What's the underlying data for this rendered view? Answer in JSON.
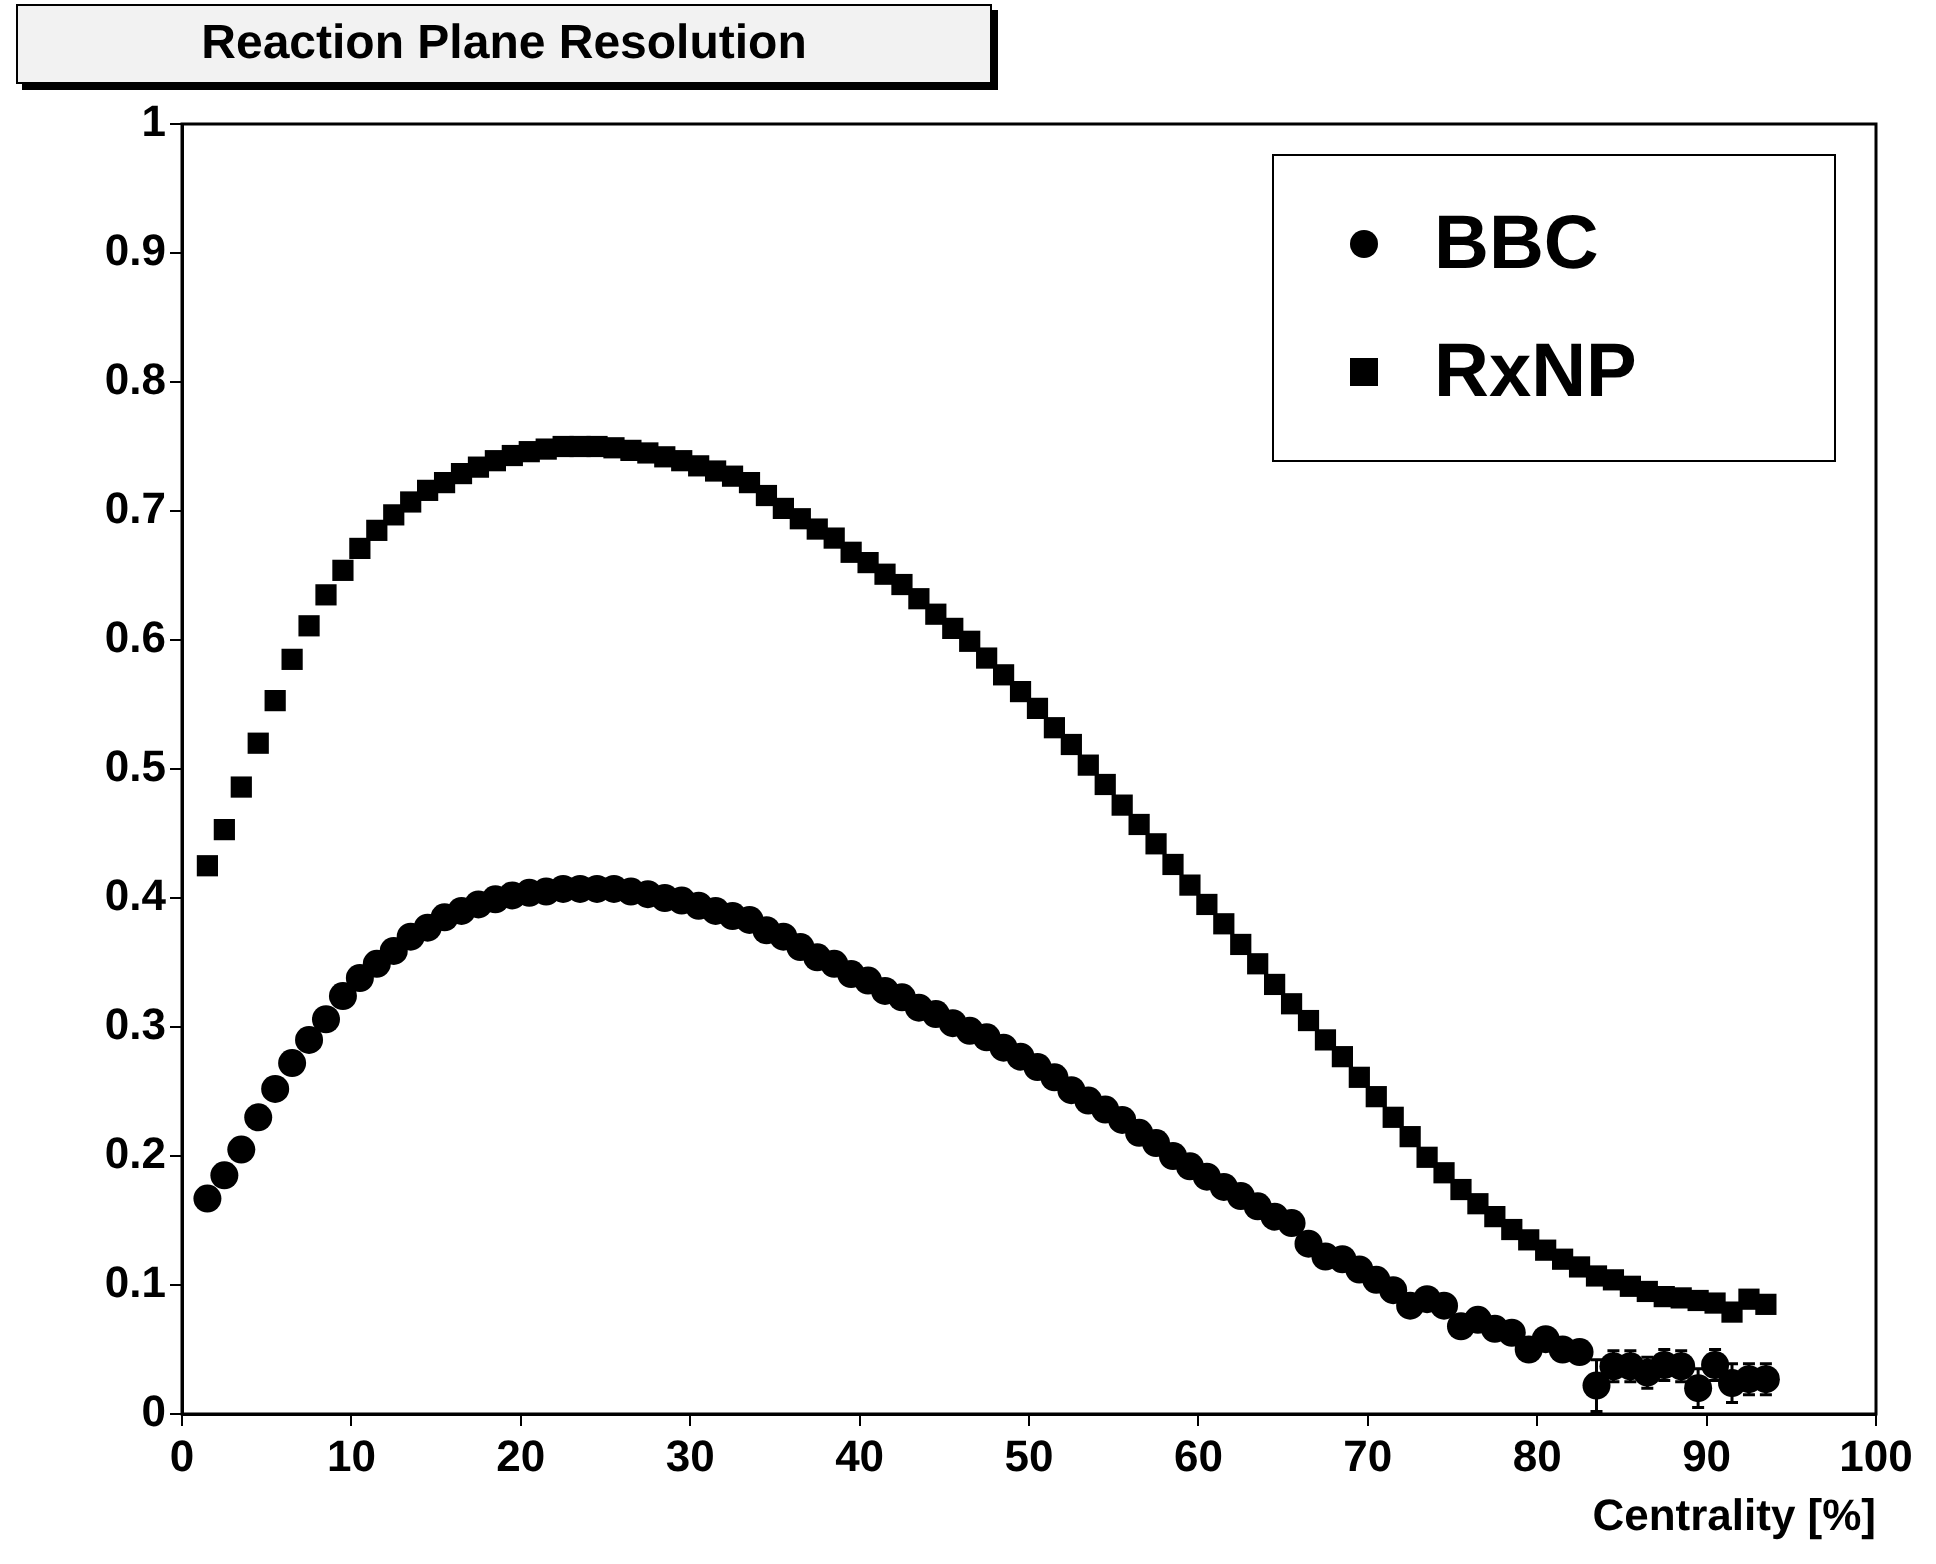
{
  "chart_data": {
    "type": "scatter",
    "title": "Reaction Plane Resolution",
    "xlabel": "Centrality [%]",
    "x": [
      1.5,
      2.5,
      3.5,
      4.5,
      5.5,
      6.5,
      7.5,
      8.5,
      9.5,
      10.5,
      11.5,
      12.5,
      13.5,
      14.5,
      15.5,
      16.5,
      17.5,
      18.5,
      19.5,
      20.5,
      21.5,
      22.5,
      23.5,
      24.5,
      25.5,
      26.5,
      27.5,
      28.5,
      29.5,
      30.5,
      31.5,
      32.5,
      33.5,
      34.5,
      35.5,
      36.5,
      37.5,
      38.5,
      39.5,
      40.5,
      41.5,
      42.5,
      43.5,
      44.5,
      45.5,
      46.5,
      47.5,
      48.5,
      49.5,
      50.5,
      51.5,
      52.5,
      53.5,
      54.5,
      55.5,
      56.5,
      57.5,
      58.5,
      59.5,
      60.5,
      61.5,
      62.5,
      63.5,
      64.5,
      65.5,
      66.5,
      67.5,
      68.5,
      69.5,
      70.5,
      71.5,
      72.5,
      73.5,
      74.5,
      75.5,
      76.5,
      77.5,
      78.5,
      79.5,
      80.5,
      81.5,
      82.5,
      83.5,
      84.5,
      85.5,
      86.5,
      87.5,
      88.5,
      89.5,
      90.5,
      91.5,
      92.5,
      93.5
    ],
    "series": [
      {
        "name": "BBC",
        "color": "#000000",
        "marker": "circle",
        "values": [
          0.167,
          0.185,
          0.205,
          0.23,
          0.252,
          0.272,
          0.29,
          0.306,
          0.324,
          0.338,
          0.349,
          0.359,
          0.37,
          0.377,
          0.385,
          0.39,
          0.395,
          0.399,
          0.402,
          0.404,
          0.405,
          0.407,
          0.407,
          0.407,
          0.407,
          0.405,
          0.403,
          0.4,
          0.398,
          0.394,
          0.39,
          0.386,
          0.383,
          0.375,
          0.37,
          0.362,
          0.354,
          0.349,
          0.341,
          0.336,
          0.328,
          0.323,
          0.315,
          0.31,
          0.303,
          0.297,
          0.292,
          0.284,
          0.277,
          0.269,
          0.261,
          0.251,
          0.243,
          0.236,
          0.228,
          0.218,
          0.21,
          0.2,
          0.192,
          0.184,
          0.176,
          0.169,
          0.161,
          0.153,
          0.148,
          0.132,
          0.122,
          0.12,
          0.112,
          0.104,
          0.096,
          0.084,
          0.089,
          0.084,
          0.068,
          0.073,
          0.066,
          0.063,
          0.05,
          0.058,
          0.05,
          0.048,
          0.022,
          0.037,
          0.037,
          0.032,
          0.038,
          0.037,
          0.02,
          0.038,
          0.024,
          0.027,
          0.027
        ],
        "errors": [
          null,
          null,
          null,
          null,
          null,
          null,
          null,
          null,
          null,
          null,
          null,
          null,
          null,
          null,
          null,
          null,
          null,
          null,
          null,
          null,
          null,
          null,
          null,
          null,
          null,
          null,
          null,
          null,
          null,
          null,
          null,
          null,
          null,
          null,
          null,
          null,
          null,
          null,
          null,
          null,
          null,
          null,
          null,
          null,
          null,
          null,
          null,
          null,
          null,
          null,
          null,
          null,
          null,
          null,
          null,
          null,
          null,
          null,
          null,
          null,
          null,
          null,
          null,
          null,
          null,
          null,
          null,
          null,
          null,
          null,
          null,
          null,
          null,
          null,
          null,
          null,
          null,
          null,
          null,
          null,
          null,
          null,
          0.02,
          0.012,
          0.012,
          0.012,
          0.012,
          0.012,
          0.015,
          0.012,
          0.015,
          0.012,
          0.012
        ]
      },
      {
        "name": "RxNP",
        "color": "#000000",
        "marker": "square",
        "values": [
          0.425,
          0.453,
          0.486,
          0.52,
          0.553,
          0.585,
          0.611,
          0.635,
          0.654,
          0.671,
          0.685,
          0.697,
          0.707,
          0.716,
          0.722,
          0.729,
          0.734,
          0.739,
          0.743,
          0.746,
          0.748,
          0.75,
          0.75,
          0.75,
          0.749,
          0.747,
          0.745,
          0.742,
          0.739,
          0.735,
          0.731,
          0.727,
          0.722,
          0.712,
          0.702,
          0.694,
          0.686,
          0.679,
          0.668,
          0.66,
          0.651,
          0.643,
          0.632,
          0.62,
          0.609,
          0.599,
          0.586,
          0.573,
          0.56,
          0.547,
          0.532,
          0.519,
          0.503,
          0.488,
          0.472,
          0.457,
          0.442,
          0.426,
          0.41,
          0.395,
          0.38,
          0.364,
          0.349,
          0.333,
          0.318,
          0.305,
          0.29,
          0.277,
          0.261,
          0.246,
          0.23,
          0.215,
          0.199,
          0.187,
          0.174,
          0.163,
          0.153,
          0.143,
          0.135,
          0.127,
          0.12,
          0.114,
          0.107,
          0.104,
          0.099,
          0.095,
          0.091,
          0.09,
          0.088,
          0.086,
          0.079,
          0.089,
          0.085
        ]
      }
    ],
    "xlim": [
      0,
      100
    ],
    "xticks": [
      0,
      10,
      20,
      30,
      40,
      50,
      60,
      70,
      80,
      90,
      100
    ],
    "ylim": [
      0,
      1
    ],
    "yticks": [
      0,
      0.1,
      0.2,
      0.3,
      0.4,
      0.5,
      0.6,
      0.7,
      0.8,
      0.9,
      1
    ],
    "grid": false,
    "legend": "top right"
  }
}
